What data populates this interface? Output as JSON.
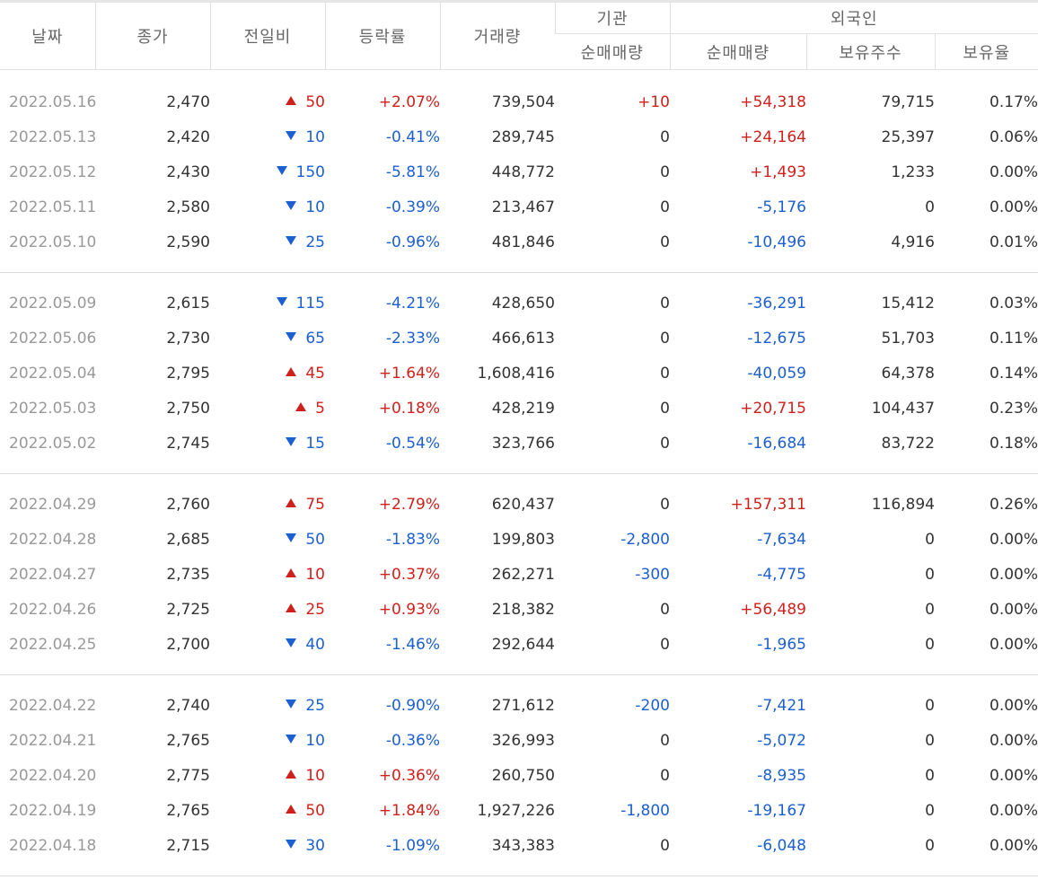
{
  "headers": {
    "date": "날짜",
    "close": "종가",
    "change": "전일비",
    "rate": "등락률",
    "volume": "거래량",
    "institution": "기관",
    "foreign": "외국인",
    "inst_net": "순매매량",
    "foreign_net": "순매매량",
    "holdings": "보유주수",
    "ratio": "보유율"
  },
  "colors": {
    "up": "#d0201c",
    "down": "#1c5fd0",
    "date": "#999999"
  },
  "groups": [
    [
      {
        "date": "2022.05.16",
        "close": "2,470",
        "dir": "up",
        "change": "50",
        "rate": "+2.07%",
        "volume": "739,504",
        "inst": "+10",
        "foreign": "+54,318",
        "holdings": "79,715",
        "ratio": "0.17%"
      },
      {
        "date": "2022.05.13",
        "close": "2,420",
        "dir": "down",
        "change": "10",
        "rate": "-0.41%",
        "volume": "289,745",
        "inst": "0",
        "foreign": "+24,164",
        "holdings": "25,397",
        "ratio": "0.06%"
      },
      {
        "date": "2022.05.12",
        "close": "2,430",
        "dir": "down",
        "change": "150",
        "rate": "-5.81%",
        "volume": "448,772",
        "inst": "0",
        "foreign": "+1,493",
        "holdings": "1,233",
        "ratio": "0.00%"
      },
      {
        "date": "2022.05.11",
        "close": "2,580",
        "dir": "down",
        "change": "10",
        "rate": "-0.39%",
        "volume": "213,467",
        "inst": "0",
        "foreign": "-5,176",
        "holdings": "0",
        "ratio": "0.00%"
      },
      {
        "date": "2022.05.10",
        "close": "2,590",
        "dir": "down",
        "change": "25",
        "rate": "-0.96%",
        "volume": "481,846",
        "inst": "0",
        "foreign": "-10,496",
        "holdings": "4,916",
        "ratio": "0.01%"
      }
    ],
    [
      {
        "date": "2022.05.09",
        "close": "2,615",
        "dir": "down",
        "change": "115",
        "rate": "-4.21%",
        "volume": "428,650",
        "inst": "0",
        "foreign": "-36,291",
        "holdings": "15,412",
        "ratio": "0.03%"
      },
      {
        "date": "2022.05.06",
        "close": "2,730",
        "dir": "down",
        "change": "65",
        "rate": "-2.33%",
        "volume": "466,613",
        "inst": "0",
        "foreign": "-12,675",
        "holdings": "51,703",
        "ratio": "0.11%"
      },
      {
        "date": "2022.05.04",
        "close": "2,795",
        "dir": "up",
        "change": "45",
        "rate": "+1.64%",
        "volume": "1,608,416",
        "inst": "0",
        "foreign": "-40,059",
        "holdings": "64,378",
        "ratio": "0.14%"
      },
      {
        "date": "2022.05.03",
        "close": "2,750",
        "dir": "up",
        "change": "5",
        "rate": "+0.18%",
        "volume": "428,219",
        "inst": "0",
        "foreign": "+20,715",
        "holdings": "104,437",
        "ratio": "0.23%"
      },
      {
        "date": "2022.05.02",
        "close": "2,745",
        "dir": "down",
        "change": "15",
        "rate": "-0.54%",
        "volume": "323,766",
        "inst": "0",
        "foreign": "-16,684",
        "holdings": "83,722",
        "ratio": "0.18%"
      }
    ],
    [
      {
        "date": "2022.04.29",
        "close": "2,760",
        "dir": "up",
        "change": "75",
        "rate": "+2.79%",
        "volume": "620,437",
        "inst": "0",
        "foreign": "+157,311",
        "holdings": "116,894",
        "ratio": "0.26%"
      },
      {
        "date": "2022.04.28",
        "close": "2,685",
        "dir": "down",
        "change": "50",
        "rate": "-1.83%",
        "volume": "199,803",
        "inst": "-2,800",
        "foreign": "-7,634",
        "holdings": "0",
        "ratio": "0.00%"
      },
      {
        "date": "2022.04.27",
        "close": "2,735",
        "dir": "up",
        "change": "10",
        "rate": "+0.37%",
        "volume": "262,271",
        "inst": "-300",
        "foreign": "-4,775",
        "holdings": "0",
        "ratio": "0.00%"
      },
      {
        "date": "2022.04.26",
        "close": "2,725",
        "dir": "up",
        "change": "25",
        "rate": "+0.93%",
        "volume": "218,382",
        "inst": "0",
        "foreign": "+56,489",
        "holdings": "0",
        "ratio": "0.00%"
      },
      {
        "date": "2022.04.25",
        "close": "2,700",
        "dir": "down",
        "change": "40",
        "rate": "-1.46%",
        "volume": "292,644",
        "inst": "0",
        "foreign": "-1,965",
        "holdings": "0",
        "ratio": "0.00%"
      }
    ],
    [
      {
        "date": "2022.04.22",
        "close": "2,740",
        "dir": "down",
        "change": "25",
        "rate": "-0.90%",
        "volume": "271,612",
        "inst": "-200",
        "foreign": "-7,421",
        "holdings": "0",
        "ratio": "0.00%"
      },
      {
        "date": "2022.04.21",
        "close": "2,765",
        "dir": "down",
        "change": "10",
        "rate": "-0.36%",
        "volume": "326,993",
        "inst": "0",
        "foreign": "-5,072",
        "holdings": "0",
        "ratio": "0.00%"
      },
      {
        "date": "2022.04.20",
        "close": "2,775",
        "dir": "up",
        "change": "10",
        "rate": "+0.36%",
        "volume": "260,750",
        "inst": "0",
        "foreign": "-8,935",
        "holdings": "0",
        "ratio": "0.00%"
      },
      {
        "date": "2022.04.19",
        "close": "2,765",
        "dir": "up",
        "change": "50",
        "rate": "+1.84%",
        "volume": "1,927,226",
        "inst": "-1,800",
        "foreign": "-19,167",
        "holdings": "0",
        "ratio": "0.00%"
      },
      {
        "date": "2022.04.18",
        "close": "2,715",
        "dir": "down",
        "change": "30",
        "rate": "-1.09%",
        "volume": "343,383",
        "inst": "0",
        "foreign": "-6,048",
        "holdings": "0",
        "ratio": "0.00%"
      }
    ]
  ]
}
